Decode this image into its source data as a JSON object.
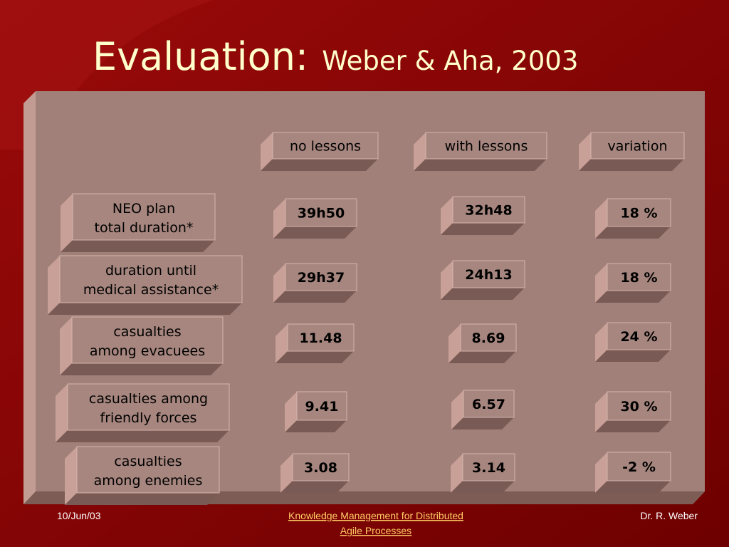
{
  "title": "Evaluation:",
  "subtitle": "Weber & Aha, 2003",
  "table": {
    "columns": [
      "no lessons",
      "with lessons",
      "variation"
    ],
    "rows": [
      {
        "label": [
          "NEO plan",
          "total duration*"
        ],
        "cells": [
          "39h50",
          "32h48",
          "18 %"
        ]
      },
      {
        "label": [
          "duration until",
          "medical assistance*"
        ],
        "cells": [
          "29h37",
          "24h13",
          "18 %"
        ]
      },
      {
        "label": [
          "casualties",
          "among evacuees"
        ],
        "cells": [
          "11.48",
          "8.69",
          "24 %"
        ]
      },
      {
        "label": [
          "casualties among",
          "friendly forces"
        ],
        "cells": [
          "9.41",
          "6.57",
          "30 %"
        ]
      },
      {
        "label": [
          "casualties",
          "among enemies"
        ],
        "cells": [
          "3.08",
          "3.14",
          "-2 %"
        ]
      }
    ]
  },
  "footer": {
    "date": "10/Jun/03",
    "link": [
      "Knowledge Management for Distributed",
      "Agile Processes"
    ],
    "author": "Dr. R. Weber"
  }
}
